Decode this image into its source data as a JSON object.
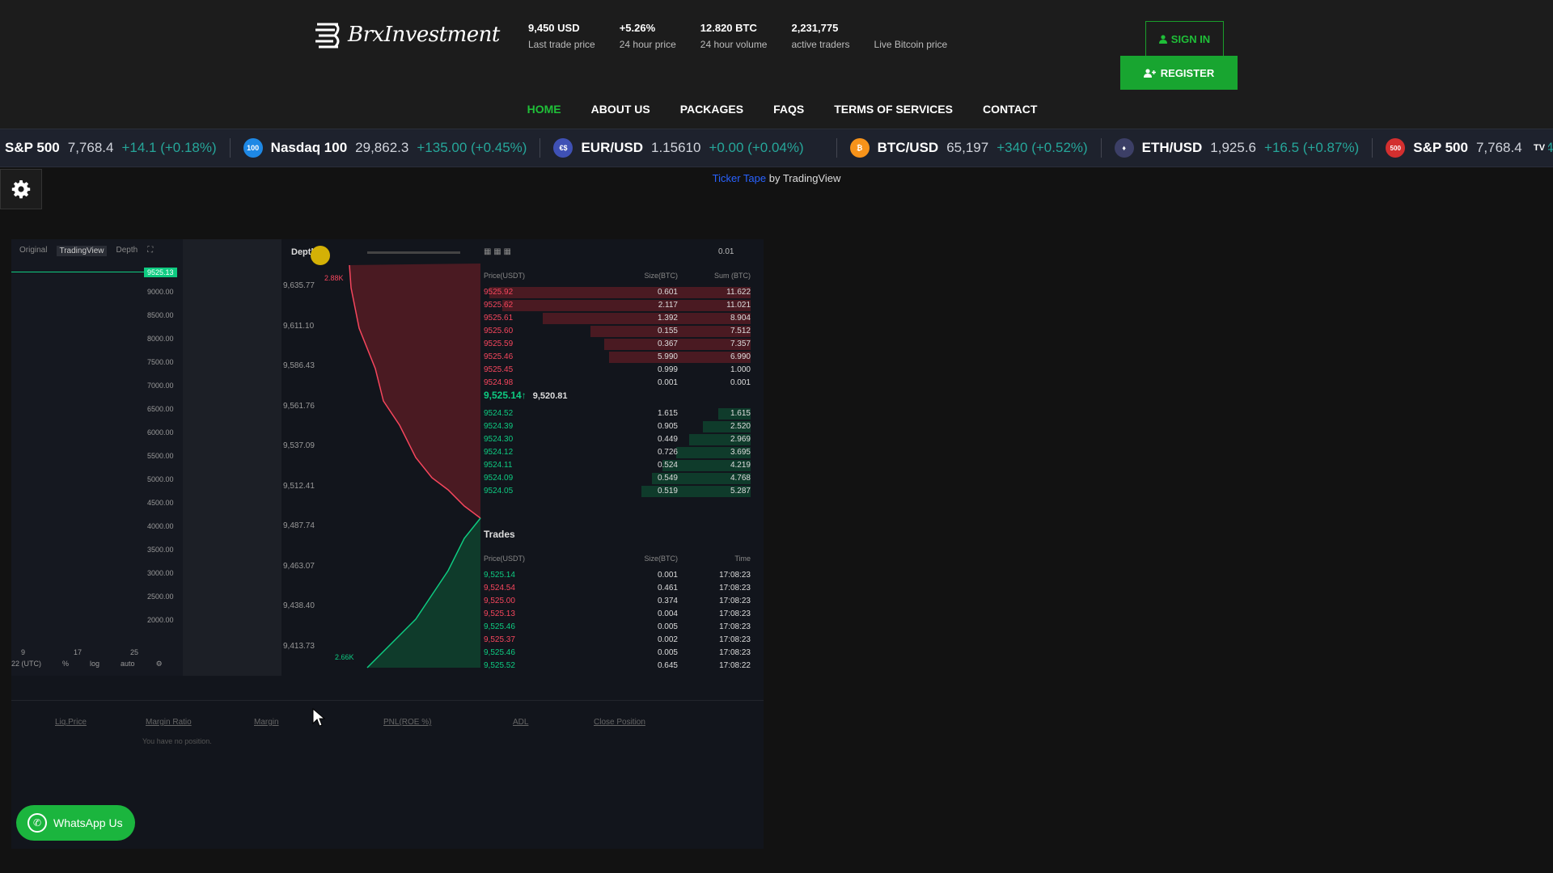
{
  "brand": {
    "name": "BrxInvestment"
  },
  "stats": [
    {
      "value": "9,450 USD",
      "label": "Last trade price"
    },
    {
      "value": "+5.26%",
      "label": "24 hour price"
    },
    {
      "value": "12.820 BTC",
      "label": "24 hour volume"
    },
    {
      "value": "2,231,775",
      "label": "active traders"
    },
    {
      "value": "",
      "label": "Live Bitcoin price"
    }
  ],
  "auth": {
    "signin_label": "SIGN IN",
    "register_label": "REGISTER"
  },
  "nav": [
    "HOME",
    "ABOUT US",
    "PACKAGES",
    "FAQS",
    "TERMS OF SERVICES",
    "CONTACT"
  ],
  "ticker": [
    {
      "symbol": "S&P 500",
      "price": "7,768.4",
      "change": "+14.1 (+0.18%)",
      "icon": "",
      "icon_color": ""
    },
    {
      "symbol": "Nasdaq 100",
      "price": "29,862.3",
      "change": "+135.00 (+0.45%)",
      "icon": "100",
      "icon_color": "#1e88e5"
    },
    {
      "symbol": "EUR/USD",
      "price": "1.15610",
      "change": "+0.00 (+0.04%)",
      "icon": "€$",
      "icon_color": "#3f51b5"
    },
    {
      "symbol": "BTC/USD",
      "price": "65,197",
      "change": "+340 (+0.52%)",
      "icon": "₿",
      "icon_color": "#f7931a"
    },
    {
      "symbol": "ETH/USD",
      "price": "1,925.6",
      "change": "+16.5 (+0.87%)",
      "icon": "♦",
      "icon_color": "#3c3f66"
    },
    {
      "symbol": "S&P 500",
      "price": "7,768.4",
      "change": "+14.1 (+0.18%)",
      "icon": "500",
      "icon_color": "#d32f2f"
    }
  ],
  "ticker_credit": {
    "link": "Ticker Tape",
    "suffix": " by TradingView"
  },
  "video": {
    "tabs": [
      "Original",
      "TradingView",
      "Depth"
    ],
    "price_badge": "9525.13",
    "yaxis": [
      "9000.00",
      "8500.00",
      "8000.00",
      "7500.00",
      "7000.00",
      "6500.00",
      "6000.00",
      "5500.00",
      "5000.00",
      "4500.00",
      "4000.00",
      "3500.00",
      "3000.00",
      "2500.00",
      "2000.00"
    ],
    "xaxis": [
      "9",
      "17",
      "25"
    ],
    "xctl": [
      "22 (UTC)",
      "%",
      "log",
      "auto"
    ],
    "depth_title": "Depth",
    "depth_y": [
      "9,635.77",
      "9,611.10",
      "9,586.43",
      "9,561.76",
      "9,537.09",
      "9,512.41",
      "9,487.74",
      "9,463.07",
      "9,438.40",
      "9,413.73"
    ],
    "depth_top": "2.88K",
    "depth_bottom": "2.66K",
    "ob_head": [
      "Price(USDT)",
      "Size(BTC)",
      "Sum (BTC)"
    ],
    "ob_step": "0.01",
    "asks": [
      [
        "9525.92",
        "0.601",
        "11.622",
        0.98
      ],
      [
        "9525.62",
        "2.117",
        "11.021",
        0.93
      ],
      [
        "9525.61",
        "1.392",
        "8.904",
        0.78
      ],
      [
        "9525.60",
        "0.155",
        "7.512",
        0.6
      ],
      [
        "9525.59",
        "0.367",
        "7.357",
        0.55
      ],
      [
        "9525.46",
        "5.990",
        "6.990",
        0.53
      ],
      [
        "9525.45",
        "0.999",
        "1.000",
        0.0
      ],
      [
        "9524.98",
        "0.001",
        "0.001",
        0.0
      ]
    ],
    "mid_price": "9,525.14",
    "mid_mark": "9,520.81",
    "bids": [
      [
        "9524.52",
        "1.615",
        "1.615",
        0.12
      ],
      [
        "9524.39",
        "0.905",
        "2.520",
        0.18
      ],
      [
        "9524.30",
        "0.449",
        "2.969",
        0.23
      ],
      [
        "9524.12",
        "0.726",
        "3.695",
        0.28
      ],
      [
        "9524.11",
        "0.524",
        "4.219",
        0.33
      ],
      [
        "9524.09",
        "0.549",
        "4.768",
        0.37
      ],
      [
        "9524.05",
        "0.519",
        "5.287",
        0.41
      ]
    ],
    "trades_title": "Trades",
    "trades_head": [
      "Price(USDT)",
      "Size(BTC)",
      "Time"
    ],
    "trades": [
      [
        "9,525.14",
        "0.001",
        "17:08:23",
        "up"
      ],
      [
        "9,524.54",
        "0.461",
        "17:08:23",
        "down"
      ],
      [
        "9,525.00",
        "0.374",
        "17:08:23",
        "down"
      ],
      [
        "9,525.13",
        "0.004",
        "17:08:23",
        "down"
      ],
      [
        "9,525.46",
        "0.005",
        "17:08:23",
        "up"
      ],
      [
        "9,525.37",
        "0.002",
        "17:08:23",
        "down"
      ],
      [
        "9,525.46",
        "0.005",
        "17:08:23",
        "up"
      ],
      [
        "9,525.52",
        "0.645",
        "17:08:22",
        "up"
      ]
    ],
    "position_cols": [
      "Liq.Price",
      "Margin Ratio",
      "Margin",
      "PNL(ROE %)",
      "ADL",
      "Close Position"
    ],
    "position_empty": "You have no position."
  },
  "whatsapp": {
    "label": "WhatsApp Us"
  },
  "colors": {
    "accent": "#18a530",
    "ask": "#f6465d",
    "bid": "#0ecb81"
  }
}
